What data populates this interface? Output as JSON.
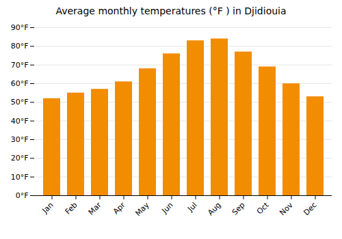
{
  "chart_data": {
    "type": "bar",
    "title": "Average monthly temperatures (°F ) in Djidiouia",
    "categories": [
      "Jan",
      "Feb",
      "Mar",
      "Apr",
      "May",
      "Jun",
      "Jul",
      "Aug",
      "Sep",
      "Oct",
      "Nov",
      "Dec"
    ],
    "values": [
      52,
      55,
      57,
      61,
      68,
      76,
      83,
      84,
      77,
      69,
      60,
      53
    ],
    "color": "#F28C00",
    "ylim": [
      0,
      90
    ],
    "yticks": [
      {
        "value": 0,
        "label": "0°F"
      },
      {
        "value": 10,
        "label": "10°F"
      },
      {
        "value": 20,
        "label": "20°F"
      },
      {
        "value": 30,
        "label": "30°F"
      },
      {
        "value": 40,
        "label": "40°F"
      },
      {
        "value": 50,
        "label": "50°F"
      },
      {
        "value": 60,
        "label": "60°F"
      },
      {
        "value": 70,
        "label": "70°F"
      },
      {
        "value": 80,
        "label": "80°F"
      },
      {
        "value": 90,
        "label": "90°F"
      }
    ],
    "grid": true
  }
}
